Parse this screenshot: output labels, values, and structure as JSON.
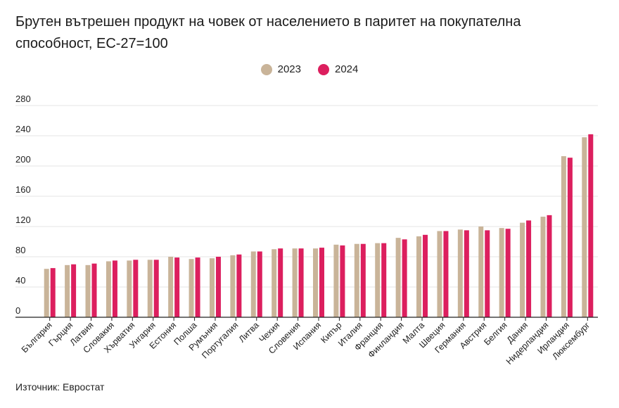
{
  "title": "Брутен вътрешен продукт на човек от населението в паритет на покупателна способност, ЕС-27=100",
  "source": "Източник: Евростат",
  "colors": {
    "series_2023": "#c9b499",
    "series_2024": "#dc1f5e",
    "grid": "#e6e6e6",
    "axis": "#222222"
  },
  "chart_data": {
    "type": "bar",
    "title": "Брутен вътрешен продукт на човек от населението в паритет на покупателна способност, ЕС-27=100",
    "xlabel": "",
    "ylabel": "",
    "ylim": [
      0,
      280
    ],
    "yticks": [
      0,
      40,
      80,
      120,
      160,
      200,
      240,
      280
    ],
    "grid": true,
    "legend_position": "top-center",
    "categories": [
      "България",
      "Гърция",
      "Латвия",
      "Словакия",
      "Хърватия",
      "Унгария",
      "Естония",
      "Полша",
      "Румъния",
      "Португалия",
      "Литва",
      "Чехия",
      "Словения",
      "Испания",
      "Кипър",
      "Италия",
      "Франция",
      "Финландия",
      "Малта",
      "Швеция",
      "Германия",
      "Австрия",
      "Белгия",
      "Дания",
      "Нидерландия",
      "Ирландия",
      "Люксембург"
    ],
    "series": [
      {
        "name": "2023",
        "color": "#c9b499",
        "values": [
          64,
          69,
          69,
          74,
          75,
          76,
          80,
          77,
          78,
          82,
          87,
          90,
          91,
          91,
          96,
          97,
          98,
          105,
          107,
          114,
          116,
          120,
          118,
          125,
          133,
          213,
          238
        ]
      },
      {
        "name": "2024",
        "color": "#dc1f5e",
        "values": [
          65,
          70,
          71,
          75,
          76,
          76,
          79,
          79,
          80,
          83,
          87,
          91,
          91,
          92,
          95,
          97,
          98,
          103,
          109,
          114,
          115,
          115,
          117,
          128,
          135,
          211,
          242
        ]
      }
    ]
  }
}
